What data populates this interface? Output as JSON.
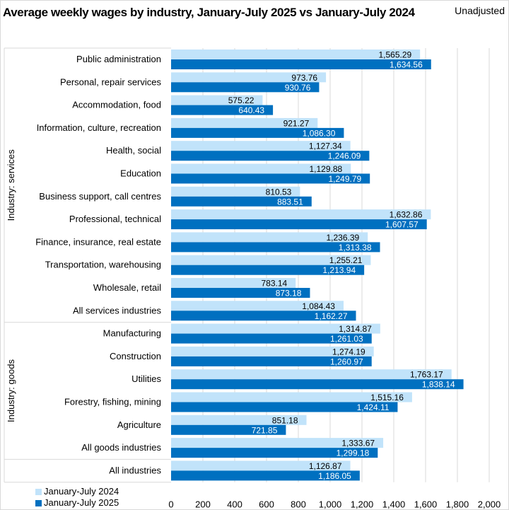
{
  "header": {
    "title": "Average weekly wages by industry, January-July 2025 vs January-July 2024",
    "subtitle": "Unadjusted"
  },
  "colors": {
    "series_2024": "#c1e3fa",
    "series_2025": "#0070c0",
    "gridline": "#d9d9d9",
    "separator": "#d9d9d9"
  },
  "chart_data": {
    "type": "bar",
    "orientation": "horizontal",
    "title": "Average weekly wages by industry, January-July 2025 vs January-July 2024",
    "subtitle": "Unadjusted",
    "xlabel": "",
    "ylabel": "",
    "xlim": [
      0,
      2000
    ],
    "x_ticks": [
      0,
      200,
      400,
      600,
      800,
      1000,
      1200,
      1400,
      1600,
      1800,
      2000
    ],
    "x_tick_labels": [
      "0",
      "200",
      "400",
      "600",
      "800",
      "1,000",
      "1,200",
      "1,400",
      "1,600",
      "1,800",
      "2,000"
    ],
    "grid": "vertical",
    "legend_position": "bottom-left",
    "groups": [
      {
        "name": "Industry: services",
        "categories": [
          "Public administration",
          "Personal, repair services",
          "Accommodation, food",
          "Information, culture, recreation",
          "Health, social",
          "Education",
          "Business support, call centres",
          "Professional, technical",
          "Finance, insurance, real estate",
          "Transportation, warehousing",
          "Wholesale, retail",
          "All services industries"
        ]
      },
      {
        "name": "Industry: goods",
        "categories": [
          "Manufacturing",
          "Construction",
          "Utilities",
          "Forestry, fishing, mining",
          "Agriculture",
          "All goods industries"
        ]
      },
      {
        "name": "",
        "categories": [
          "All industries"
        ]
      }
    ],
    "categories": [
      "Public administration",
      "Personal, repair services",
      "Accommodation, food",
      "Information, culture, recreation",
      "Health, social",
      "Education",
      "Business support, call centres",
      "Professional, technical",
      "Finance, insurance, real estate",
      "Transportation, warehousing",
      "Wholesale, retail",
      "All services industries",
      "Manufacturing",
      "Construction",
      "Utilities",
      "Forestry, fishing, mining",
      "Agriculture",
      "All goods industries",
      "All industries"
    ],
    "series": [
      {
        "name": "January-July 2024",
        "values": [
          1565.29,
          973.76,
          575.22,
          921.27,
          1127.34,
          1129.88,
          810.53,
          1632.86,
          1236.39,
          1255.21,
          783.14,
          1084.43,
          1314.87,
          1274.19,
          1763.17,
          1515.16,
          851.18,
          1333.67,
          1126.87
        ],
        "labels": [
          "1,565.29",
          "973.76",
          "575.22",
          "921.27",
          "1,127.34",
          "1,129.88",
          "810.53",
          "1,632.86",
          "1,236.39",
          "1,255.21",
          "783.14",
          "1,084.43",
          "1,314.87",
          "1,274.19",
          "1,763.17",
          "1,515.16",
          "851.18",
          "1,333.67",
          "1,126.87"
        ]
      },
      {
        "name": "January-July 2025",
        "values": [
          1634.56,
          930.76,
          640.43,
          1086.3,
          1246.09,
          1249.79,
          883.51,
          1607.57,
          1313.38,
          1213.94,
          873.18,
          1162.27,
          1261.03,
          1260.97,
          1838.14,
          1424.11,
          721.85,
          1299.18,
          1186.05
        ],
        "labels": [
          "1,634.56",
          "930.76",
          "640.43",
          "1,086.30",
          "1,246.09",
          "1,249.79",
          "883.51",
          "1,607.57",
          "1,313.38",
          "1,213.94",
          "873.18",
          "1,162.27",
          "1,261.03",
          "1,260.97",
          "1,838.14",
          "1,424.11",
          "721.85",
          "1,299.18",
          "1,186.05"
        ]
      }
    ]
  },
  "legend": {
    "items": [
      {
        "label": "January-July 2024"
      },
      {
        "label": "January-July 2025"
      }
    ]
  }
}
